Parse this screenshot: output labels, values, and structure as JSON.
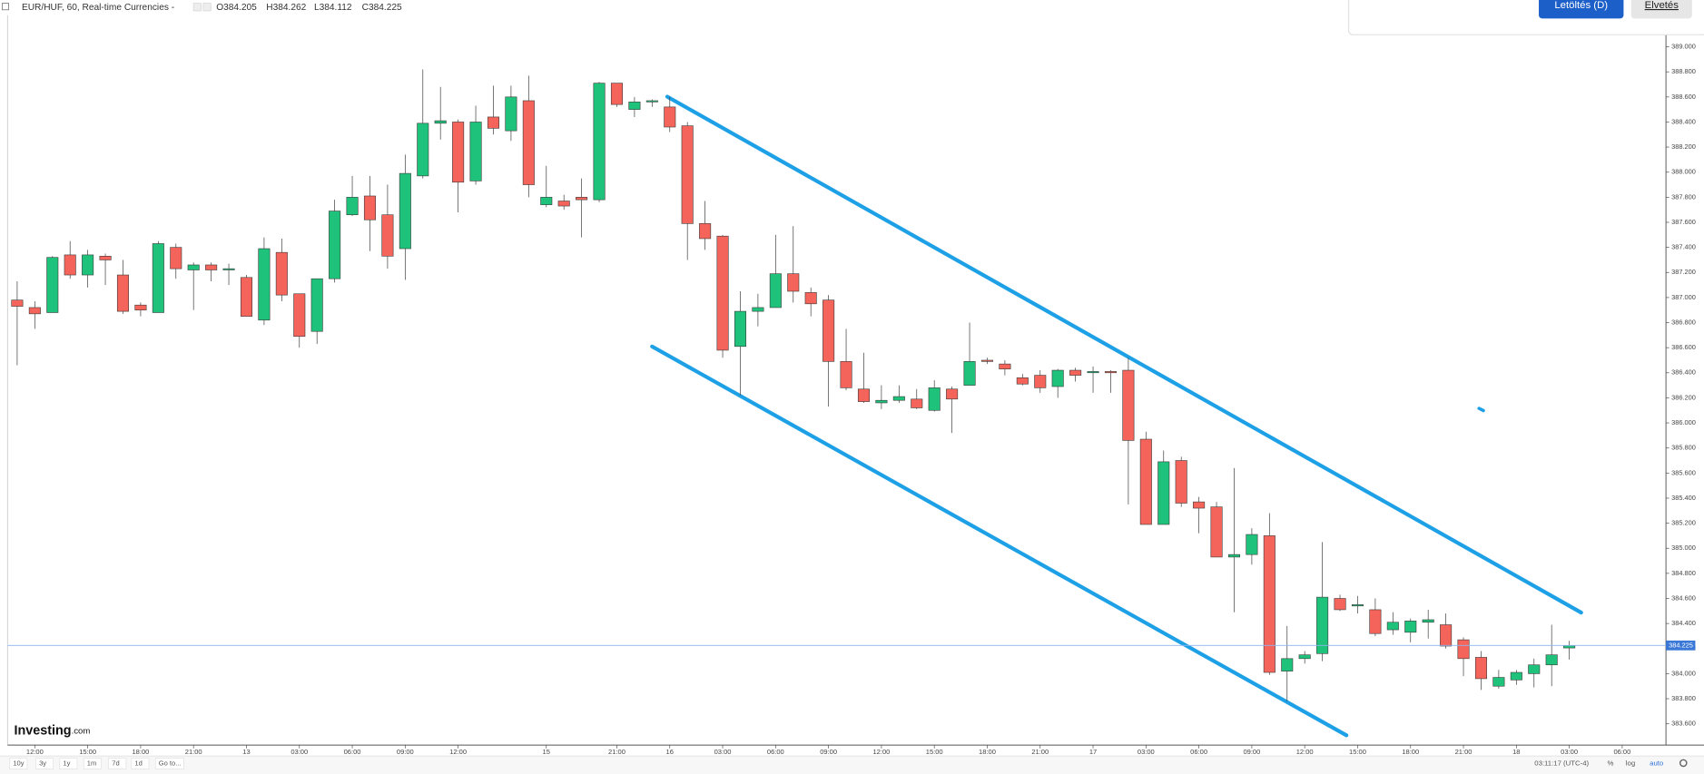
{
  "chart_data": {
    "type": "candlestick",
    "title": "EUR/HUF, 60, Real-time Currencies -",
    "header": [
      "O384.205",
      "H384.262",
      "L384.112",
      "C384.225"
    ],
    "categories": [
      null,
      "12:00",
      null,
      null,
      "15:00",
      null,
      null,
      "18:00",
      null,
      null,
      "21:00",
      null,
      null,
      "13",
      null,
      null,
      "03:00",
      null,
      null,
      "06:00",
      null,
      null,
      "09:00",
      null,
      null,
      "12:00",
      null,
      null,
      null,
      null,
      "15",
      null,
      null,
      null,
      "21:00",
      null,
      null,
      "16",
      null,
      null,
      "03:00",
      null,
      null,
      "06:00",
      null,
      null,
      "09:00",
      null,
      null,
      "12:00",
      null,
      null,
      "15:00",
      null,
      null,
      "18:00",
      null,
      null,
      "21:00",
      null,
      null,
      "17",
      null,
      null,
      "03:00",
      null,
      null,
      "06:00",
      null,
      null,
      "09:00",
      null,
      null,
      "12:00",
      null,
      null,
      "15:00",
      null,
      null,
      "18:00",
      null,
      null,
      "21:00",
      null,
      null,
      "18",
      null,
      null,
      "03:00",
      null,
      null,
      "06:00"
    ],
    "open": [
      386.98,
      386.92,
      386.88,
      387.34,
      387.18,
      387.33,
      387.18,
      386.94,
      386.88,
      387.4,
      387.22,
      387.26,
      387.22,
      387.16,
      386.82,
      387.36,
      387.03,
      386.73,
      387.15,
      387.66,
      387.81,
      387.66,
      387.39,
      387.97,
      388.39,
      388.4,
      387.93,
      388.44,
      388.33,
      388.57,
      387.74,
      387.77,
      387.8,
      387.78,
      388.71,
      388.5,
      388.56,
      388.52,
      388.37,
      387.59,
      387.49,
      386.61,
      386.89,
      386.92,
      387.19,
      387.04,
      386.98,
      386.49,
      386.27,
      386.16,
      386.18,
      386.19,
      386.1,
      386.27,
      386.3,
      386.5,
      386.47,
      386.36,
      386.38,
      386.29,
      386.42,
      386.4,
      386.41,
      386.42,
      385.87,
      385.19,
      385.7,
      385.37,
      385.33,
      384.93,
      384.95,
      385.1,
      384.02,
      384.12,
      384.16,
      384.6,
      384.54,
      384.51,
      384.35,
      384.33,
      384.41,
      384.39,
      384.27,
      384.13,
      383.9,
      383.95,
      384.0,
      384.07,
      384.205,
      null,
      null,
      null
    ],
    "high": [
      387.13,
      386.97,
      387.33,
      387.45,
      387.38,
      387.35,
      387.3,
      386.96,
      387.45,
      387.43,
      387.28,
      387.28,
      387.27,
      387.18,
      387.48,
      387.47,
      387.03,
      387.15,
      387.78,
      387.97,
      387.97,
      387.9,
      388.14,
      388.82,
      388.68,
      388.42,
      388.53,
      388.69,
      388.69,
      388.77,
      388.05,
      387.82,
      387.95,
      388.72,
      388.71,
      388.6,
      388.58,
      388.6,
      388.4,
      387.77,
      387.5,
      387.05,
      387.03,
      387.5,
      387.57,
      387.08,
      387.02,
      386.75,
      386.56,
      386.3,
      386.3,
      386.27,
      386.34,
      386.29,
      386.8,
      386.52,
      386.5,
      386.39,
      386.42,
      386.43,
      386.44,
      386.45,
      386.42,
      386.52,
      385.93,
      385.78,
      385.73,
      385.41,
      385.37,
      385.64,
      385.16,
      385.28,
      384.38,
      384.18,
      385.05,
      384.63,
      384.62,
      384.6,
      384.49,
      384.44,
      384.51,
      384.48,
      384.29,
      384.18,
      384.03,
      384.03,
      384.12,
      384.39,
      384.262,
      null,
      null,
      null
    ],
    "low": [
      386.46,
      386.75,
      386.88,
      387.15,
      387.08,
      387.1,
      386.87,
      386.85,
      386.88,
      387.15,
      386.9,
      387.13,
      387.1,
      386.85,
      386.78,
      386.97,
      386.6,
      386.63,
      387.12,
      387.65,
      387.37,
      387.23,
      387.14,
      387.95,
      388.26,
      387.68,
      387.9,
      388.3,
      388.25,
      387.8,
      387.72,
      387.7,
      387.48,
      387.76,
      388.52,
      388.44,
      388.52,
      388.32,
      387.3,
      387.38,
      386.52,
      386.22,
      386.77,
      386.92,
      386.96,
      386.85,
      386.13,
      386.26,
      386.16,
      386.11,
      386.16,
      386.11,
      386.09,
      385.92,
      386.3,
      386.47,
      386.38,
      386.3,
      386.24,
      386.2,
      386.33,
      386.24,
      386.24,
      385.35,
      385.19,
      385.19,
      385.33,
      385.12,
      384.93,
      384.49,
      384.87,
      383.99,
      383.78,
      384.08,
      384.1,
      384.5,
      384.48,
      384.3,
      384.31,
      384.25,
      384.28,
      384.2,
      383.98,
      383.87,
      383.88,
      383.91,
      383.89,
      383.9,
      384.112,
      null,
      null,
      null
    ],
    "close": [
      386.93,
      386.87,
      387.32,
      387.18,
      387.34,
      387.3,
      386.89,
      386.9,
      387.43,
      387.23,
      387.26,
      387.22,
      387.23,
      386.85,
      387.39,
      387.02,
      386.69,
      387.15,
      387.69,
      387.8,
      387.62,
      387.33,
      387.99,
      388.39,
      388.41,
      387.92,
      388.4,
      388.35,
      388.6,
      387.9,
      387.8,
      387.73,
      387.78,
      388.71,
      388.54,
      388.56,
      388.57,
      388.36,
      387.59,
      387.47,
      386.58,
      386.89,
      386.92,
      387.19,
      387.05,
      386.95,
      386.49,
      386.28,
      386.17,
      386.18,
      386.21,
      386.12,
      386.28,
      386.19,
      386.49,
      386.49,
      386.43,
      386.31,
      386.28,
      386.42,
      386.38,
      386.41,
      386.4,
      385.86,
      385.19,
      385.69,
      385.36,
      385.32,
      384.93,
      384.95,
      385.11,
      384.01,
      384.12,
      384.15,
      384.61,
      384.51,
      384.55,
      384.32,
      384.41,
      384.42,
      384.43,
      384.22,
      384.12,
      383.96,
      383.97,
      384.01,
      384.07,
      384.15,
      384.225,
      null,
      null,
      null
    ],
    "up_color": "#1fc27a",
    "down_color": "#f4645a",
    "ylim": [
      383.43,
      389.07
    ],
    "yticks": [
      {
        "value": 383.6,
        "label": "383.600"
      },
      {
        "value": 383.8,
        "label": "383.800"
      },
      {
        "value": 384.0,
        "label": "384.000"
      },
      {
        "value": 384.2,
        "label": "384.200"
      },
      {
        "value": 384.4,
        "label": "384.400"
      },
      {
        "value": 384.6,
        "label": "384.600"
      },
      {
        "value": 384.8,
        "label": "384.800"
      },
      {
        "value": 385.0,
        "label": "385.000"
      },
      {
        "value": 385.2,
        "label": "385.200"
      },
      {
        "value": 385.4,
        "label": "385.400"
      },
      {
        "value": 385.6,
        "label": "385.600"
      },
      {
        "value": 385.8,
        "label": "385.800"
      },
      {
        "value": 386.0,
        "label": "386.000"
      },
      {
        "value": 386.2,
        "label": "386.200"
      },
      {
        "value": 386.4,
        "label": "386.400"
      },
      {
        "value": 386.6,
        "label": "386.600"
      },
      {
        "value": 386.8,
        "label": "386.800"
      },
      {
        "value": 387.0,
        "label": "387.000"
      },
      {
        "value": 387.2,
        "label": "387.200"
      },
      {
        "value": 387.4,
        "label": "387.400"
      },
      {
        "value": 387.6,
        "label": "387.600"
      },
      {
        "value": 387.8,
        "label": "387.800"
      },
      {
        "value": 388.0,
        "label": "388.000"
      },
      {
        "value": 388.2,
        "label": "388.200"
      },
      {
        "value": 388.4,
        "label": "388.400"
      },
      {
        "value": 388.6,
        "label": "388.600"
      },
      {
        "value": 388.8,
        "label": "388.800"
      },
      {
        "value": 389.0,
        "label": "389.000"
      }
    ],
    "grid": false,
    "last_price": {
      "value": 384.225,
      "label": "384.225"
    }
  },
  "ui": {
    "buttons": [
      "Letöltés (D)",
      "Elvetés"
    ],
    "logo": [
      "Investing",
      ".com"
    ],
    "ranges": [
      "10y",
      "3y",
      "1y",
      "1m",
      "7d",
      "1d",
      "Go to..."
    ],
    "clock": "03:11:17 (UTC-4)",
    "scale_buttons": [
      "%",
      "log",
      "auto"
    ]
  }
}
